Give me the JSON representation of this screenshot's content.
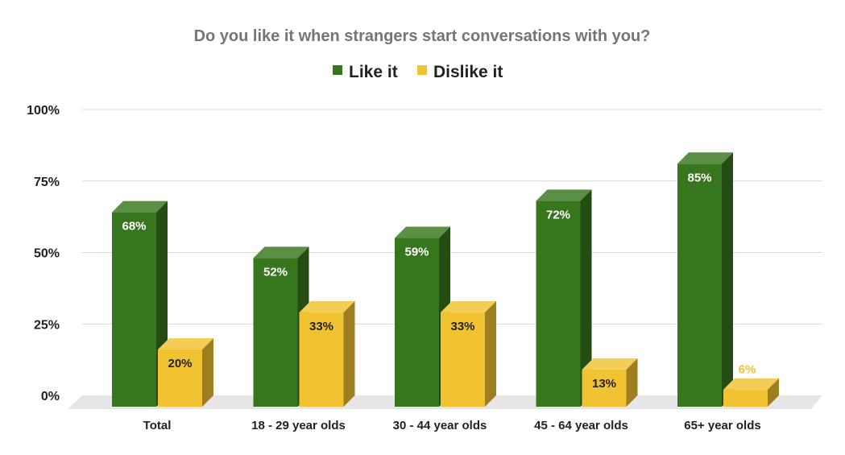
{
  "chart_data": {
    "type": "bar",
    "title": "Do you like it when strangers start conversations with you?",
    "xlabel": "",
    "ylabel": "",
    "ylim": [
      0,
      100
    ],
    "yticks": [
      "0%",
      "25%",
      "50%",
      "75%",
      "100%"
    ],
    "categories": [
      "Total",
      "18 - 29 year olds",
      "30 - 44 year olds",
      "45 - 64 year olds",
      "65+ year olds"
    ],
    "series": [
      {
        "name": "Like it",
        "values": [
          68,
          52,
          59,
          72,
          85
        ],
        "labels": [
          "68%",
          "52%",
          "59%",
          "72%",
          "85%"
        ],
        "color": "#38761d"
      },
      {
        "name": "Dislike it",
        "values": [
          20,
          33,
          33,
          13,
          6
        ],
        "labels": [
          "20%",
          "33%",
          "33%",
          "13%",
          "6%"
        ],
        "color": "#f1c232"
      }
    ],
    "legend": "top-center",
    "grid": true,
    "style": "3d"
  }
}
